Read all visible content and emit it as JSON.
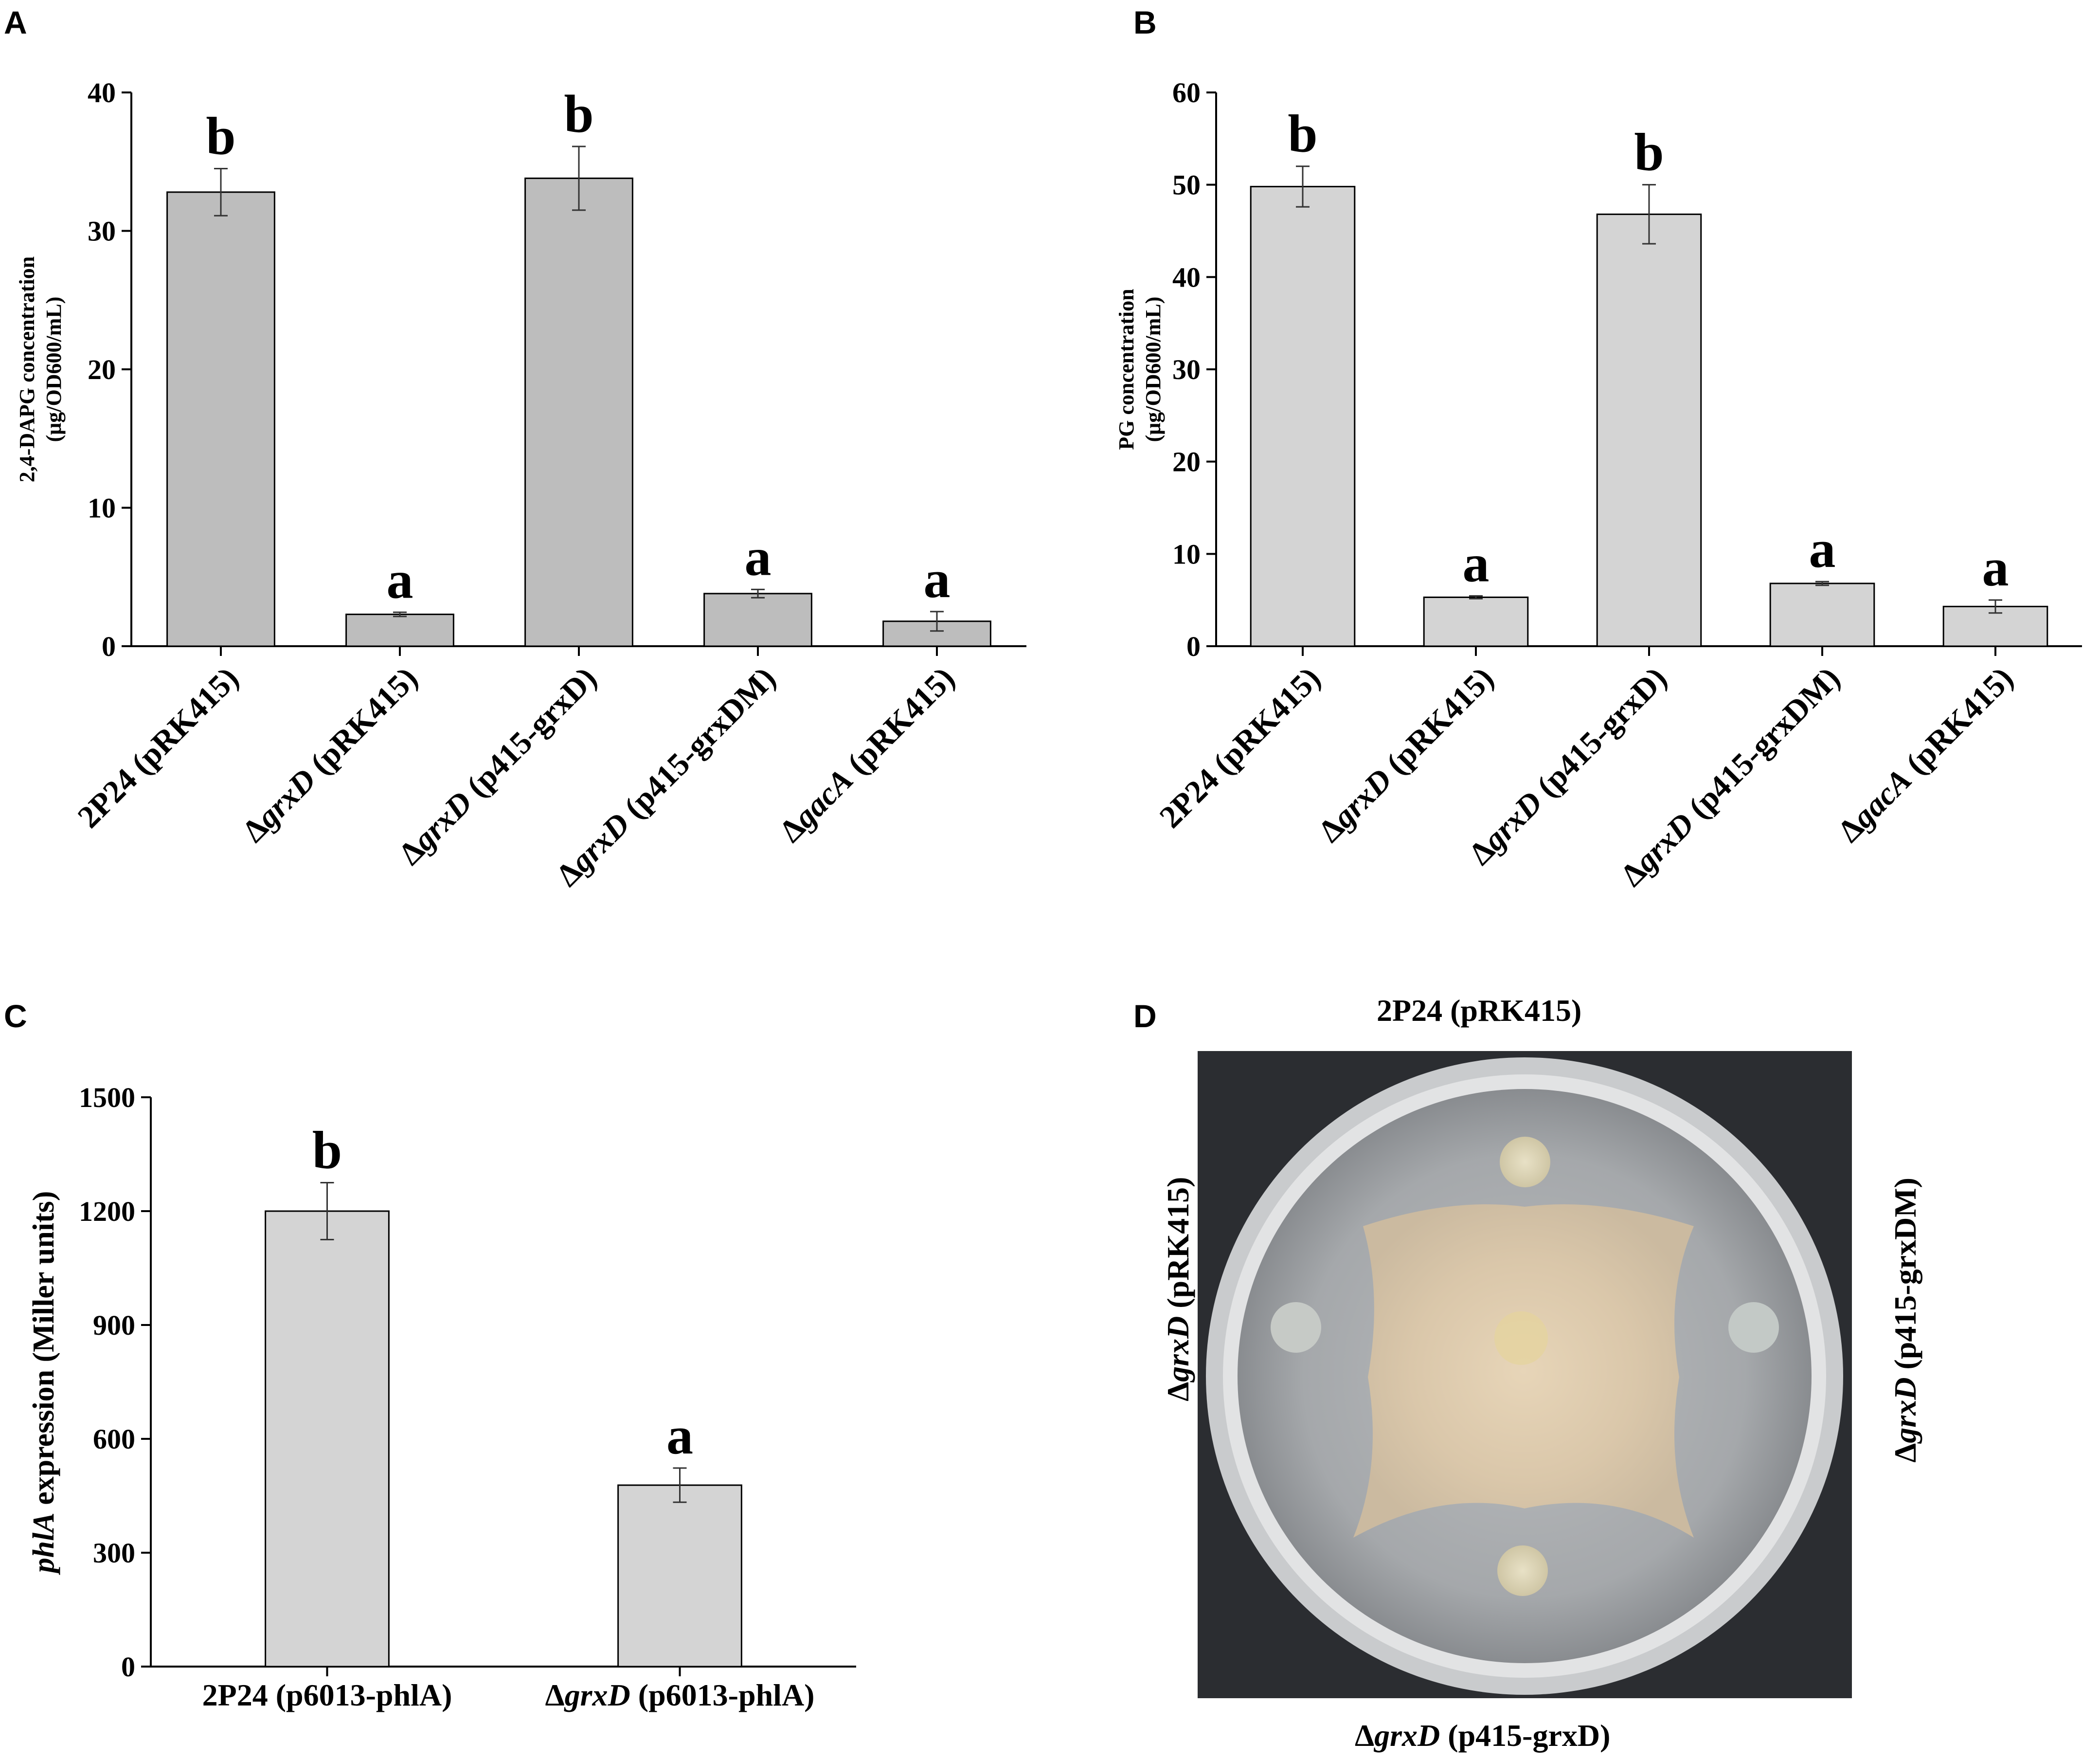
{
  "panels": {
    "A": "A",
    "B": "B",
    "C": "C",
    "D": "D"
  },
  "chart_data": [
    {
      "type": "bar",
      "panel": "A",
      "ylabel_line1": "2,4-DAPG concentration",
      "ylabel_line2": "(μg/OD600/mL)",
      "ylim": [
        0,
        40
      ],
      "yticks": [
        0,
        10,
        20,
        30,
        40
      ],
      "categories": [
        {
          "prefix": "",
          "italic": "",
          "rest": "2P24 (pRK415)"
        },
        {
          "prefix": "Δ",
          "italic": "grxD",
          "rest": " (pRK415)"
        },
        {
          "prefix": "Δ",
          "italic": "grxD",
          "rest": " (p415-grxD)"
        },
        {
          "prefix": "Δ",
          "italic": "grxD",
          "rest": " (p415-grxDM)"
        },
        {
          "prefix": "Δ",
          "italic": "gacA",
          "rest": " (pRK415)"
        }
      ],
      "values": [
        32.8,
        2.3,
        33.8,
        3.8,
        1.8
      ],
      "errors": [
        1.7,
        0.15,
        2.3,
        0.3,
        0.7
      ],
      "letters": [
        "b",
        "a",
        "b",
        "a",
        "a"
      ],
      "bar_color": "#bdbdbd"
    },
    {
      "type": "bar",
      "panel": "B",
      "ylabel_line1": "PG concentration",
      "ylabel_line2": "(μg/OD600/mL)",
      "ylim": [
        0,
        60
      ],
      "yticks": [
        0,
        10,
        20,
        30,
        40,
        50,
        60
      ],
      "categories": [
        {
          "prefix": "",
          "italic": "",
          "rest": "2P24 (pRK415)"
        },
        {
          "prefix": "Δ",
          "italic": "grxD",
          "rest": " (pRK415)"
        },
        {
          "prefix": "Δ",
          "italic": "grxD",
          "rest": " (p415-grxD)"
        },
        {
          "prefix": "Δ",
          "italic": "grxD",
          "rest": " (p415-grxDM)"
        },
        {
          "prefix": "Δ",
          "italic": "gacA",
          "rest": " (pRK415)"
        }
      ],
      "values": [
        49.8,
        5.3,
        46.8,
        6.8,
        4.3
      ],
      "errors": [
        2.2,
        0.15,
        3.2,
        0.2,
        0.7
      ],
      "letters": [
        "b",
        "a",
        "b",
        "a",
        "a"
      ],
      "bar_color": "#d4d4d4"
    },
    {
      "type": "bar",
      "panel": "C",
      "ylabel_italic": "phlA",
      "ylabel_rest": " expression (Miller units)",
      "ylim": [
        0,
        1500
      ],
      "yticks": [
        0,
        300,
        600,
        900,
        1200,
        1500
      ],
      "categories": [
        {
          "prefix": "",
          "italic": "",
          "rest": "2P24 (p6013-phlA)"
        },
        {
          "prefix": "Δ",
          "italic": "grxD",
          "rest": " (p6013-phlA)"
        }
      ],
      "values": [
        1200,
        478
      ],
      "errors": [
        75,
        45
      ],
      "letters": [
        "b",
        "a"
      ],
      "bar_color": "#d4d4d4"
    }
  ],
  "photo": {
    "top_label": "2P24 (pRK415)",
    "left_label": {
      "prefix": "Δ",
      "italic": "grxD",
      "rest": " (pRK415)"
    },
    "right_label": {
      "prefix": "Δ",
      "italic": "grxD",
      "rest": " (p415-grxDM)"
    },
    "bottom_label": {
      "prefix": "Δ",
      "italic": "grxD",
      "rest": " (p415-grxD)"
    }
  }
}
